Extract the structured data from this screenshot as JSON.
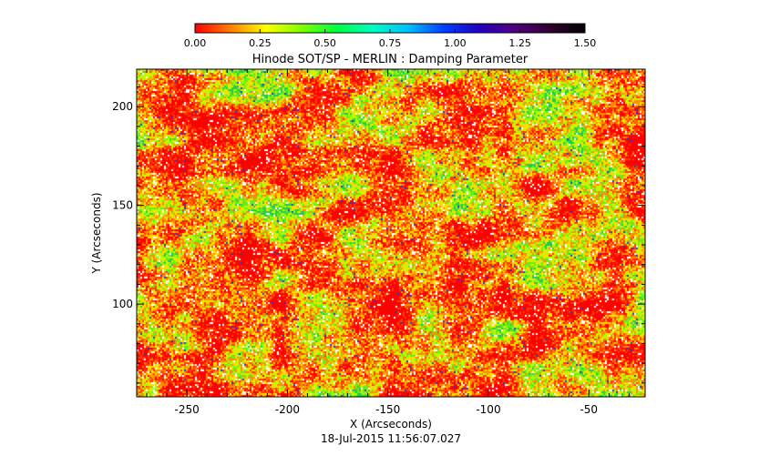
{
  "chart_data": {
    "type": "heatmap",
    "title": "Hinode SOT/SP - MERLIN : Damping Parameter",
    "xlabel": "X (Arcseconds)",
    "ylabel": "Y (Arcseconds)",
    "footer": "18-Jul-2015 11:56:07.027",
    "xlim": [
      -275,
      -22
    ],
    "ylim": [
      53,
      219
    ],
    "xticks": [
      -250,
      -200,
      -150,
      -100,
      -50
    ],
    "xtick_labels": [
      "-250",
      "-200",
      "-150",
      "-100",
      "-50"
    ],
    "yticks": [
      100,
      150,
      200
    ],
    "ytick_labels": [
      "100",
      "150",
      "200"
    ],
    "colorbar": {
      "range": [
        0.0,
        1.5
      ],
      "ticks": [
        0.0,
        0.25,
        0.5,
        0.75,
        1.0,
        1.25,
        1.5
      ],
      "tick_labels": [
        "0.00",
        "0.25",
        "0.50",
        "0.75",
        "1.00",
        "1.25",
        "1.50"
      ],
      "colors": [
        "#ff0000",
        "#ff8000",
        "#ffff00",
        "#80ff00",
        "#00ff40",
        "#00ffc0",
        "#00c0ff",
        "#0040ff",
        "#2000c0",
        "#500080",
        "#300030",
        "#000000"
      ]
    },
    "grid": false
  }
}
